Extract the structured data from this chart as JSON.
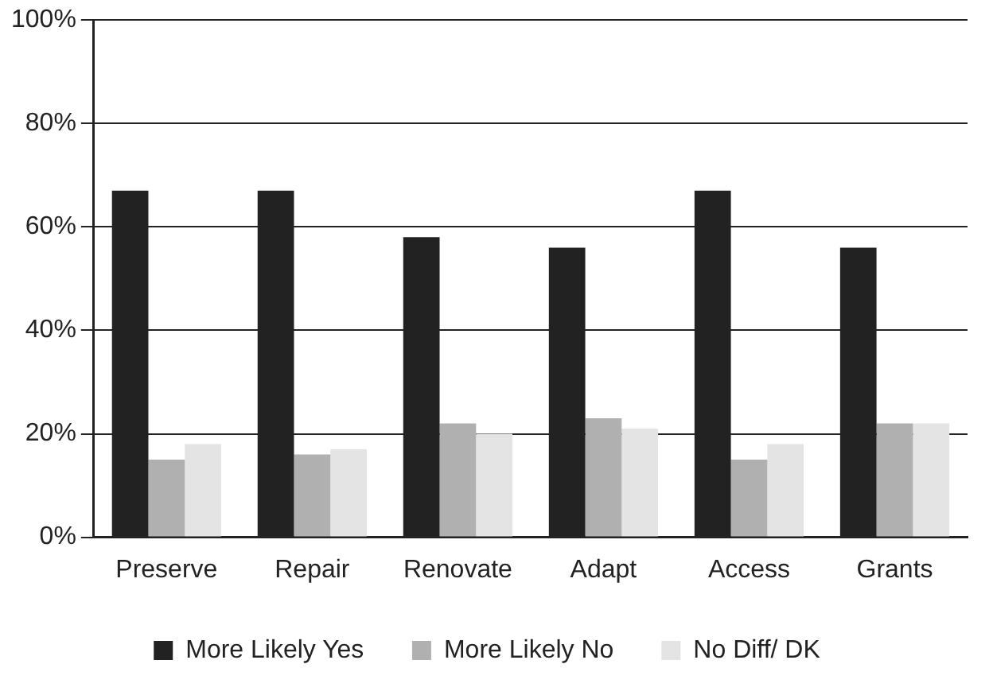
{
  "chart_data": {
    "type": "bar",
    "categories": [
      "Preserve",
      "Repair",
      "Renovate",
      "Adapt",
      "Access",
      "Grants"
    ],
    "series": [
      {
        "name": "More Likely Yes",
        "color": "#222222",
        "values": [
          67,
          67,
          58,
          56,
          67,
          56
        ]
      },
      {
        "name": "More Likely No",
        "color": "#b0b0b0",
        "values": [
          15,
          16,
          22,
          23,
          15,
          22
        ]
      },
      {
        "name": "No Diff/ DK",
        "color": "#e4e4e4",
        "values": [
          18,
          17,
          20,
          21,
          18,
          22
        ]
      }
    ],
    "ylim": [
      0,
      100
    ],
    "yticks": [
      {
        "value": 0,
        "label": "0%"
      },
      {
        "value": 20,
        "label": "20%"
      },
      {
        "value": 40,
        "label": "40%"
      },
      {
        "value": 60,
        "label": "60%"
      },
      {
        "value": 80,
        "label": "80%"
      },
      {
        "value": 100,
        "label": "100%"
      }
    ],
    "grid": "y",
    "legend": "bottom"
  }
}
